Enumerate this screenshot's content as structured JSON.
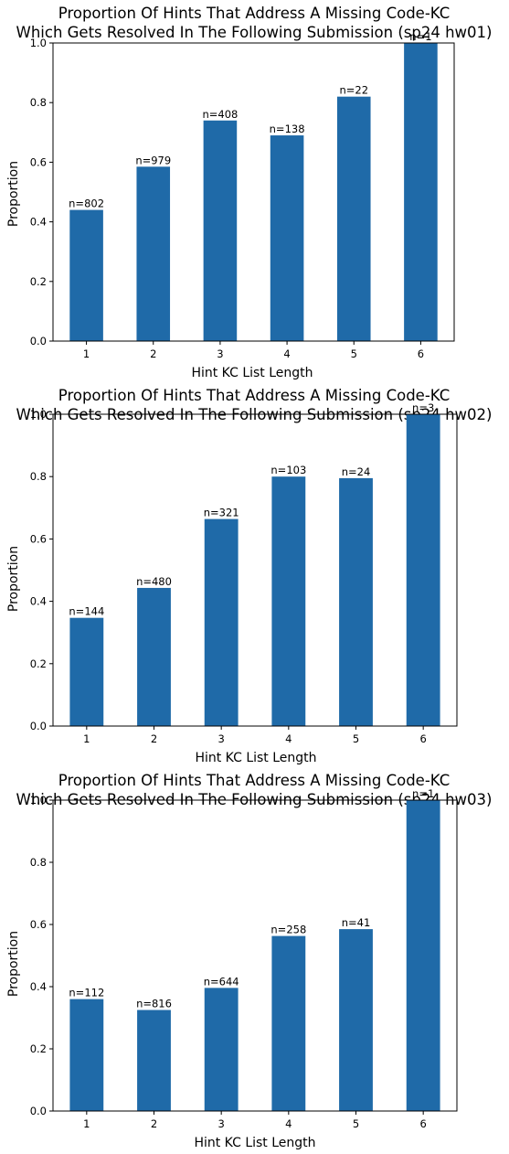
{
  "chart_data": [
    {
      "type": "bar",
      "title_line1": "Proportion Of Hints That Address A Missing Code-KC",
      "title_line2": "Which Gets Resolved In The Following Submission (sp24 hw01)",
      "xlabel": "Hint KC List Length",
      "ylabel": "Proportion",
      "ylim": [
        0,
        1.0
      ],
      "yticks": [
        "0.0",
        "0.2",
        "0.4",
        "0.6",
        "0.8",
        "1.0"
      ],
      "categories": [
        "1",
        "2",
        "3",
        "4",
        "5",
        "6"
      ],
      "values": [
        0.44,
        0.585,
        0.74,
        0.69,
        0.82,
        1.0
      ],
      "bar_labels": [
        "n=802",
        "n=979",
        "n=408",
        "n=138",
        "n=22",
        "n=1"
      ],
      "color": "#1f6aa8",
      "grid": false
    },
    {
      "type": "bar",
      "title_line1": "Proportion Of Hints That Address A Missing Code-KC",
      "title_line2": "Which Gets Resolved In The Following Submission (sp24 hw02)",
      "xlabel": "Hint KC List Length",
      "ylabel": "Proportion",
      "ylim": [
        0,
        1.0
      ],
      "yticks": [
        "0.0",
        "0.2",
        "0.4",
        "0.6",
        "0.8",
        "1.0"
      ],
      "categories": [
        "1",
        "2",
        "3",
        "4",
        "5",
        "6"
      ],
      "values": [
        0.347,
        0.443,
        0.664,
        0.8,
        0.795,
        1.0
      ],
      "bar_labels": [
        "n=144",
        "n=480",
        "n=321",
        "n=103",
        "n=24",
        "n=3"
      ],
      "color": "#1f6aa8",
      "grid": false
    },
    {
      "type": "bar",
      "title_line1": "Proportion Of Hints That Address A Missing Code-KC",
      "title_line2": "Which Gets Resolved In The Following Submission (sp24 hw03)",
      "xlabel": "Hint KC List Length",
      "ylabel": "Proportion",
      "ylim": [
        0,
        1.0
      ],
      "yticks": [
        "0.0",
        "0.2",
        "0.4",
        "0.6",
        "0.8",
        "1.0"
      ],
      "categories": [
        "1",
        "2",
        "3",
        "4",
        "5",
        "6"
      ],
      "values": [
        0.36,
        0.325,
        0.396,
        0.563,
        0.585,
        1.0
      ],
      "bar_labels": [
        "n=112",
        "n=816",
        "n=644",
        "n=258",
        "n=41",
        "n=1"
      ],
      "color": "#1f6aa8",
      "grid": false
    }
  ]
}
